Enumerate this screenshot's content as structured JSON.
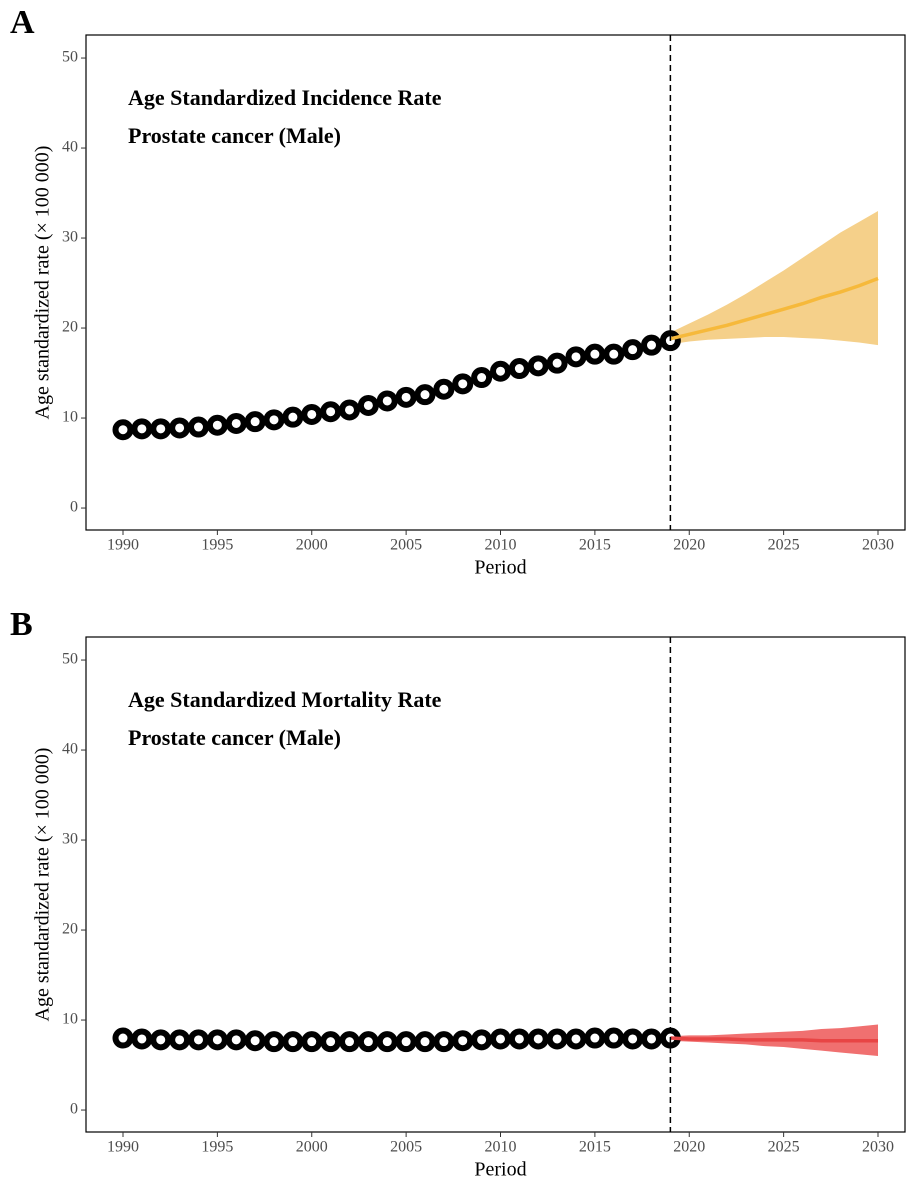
{
  "chart_data": [
    {
      "type": "line",
      "panel_label": "A",
      "title": "Age Standardized Incidence Rate",
      "subtitle": "Prostate cancer (Male)",
      "xlabel": "Period",
      "ylabel": "Age standardized rate (× 100 000)",
      "xlim": [
        1988.04,
        2031.43
      ],
      "xticks": [
        1990,
        1995,
        2000,
        2005,
        2010,
        2015,
        2020,
        2025,
        2030
      ],
      "ylim": [
        -2.44,
        52.56
      ],
      "yticks": [
        0,
        10,
        20,
        30,
        40,
        50
      ],
      "vline": 2019,
      "series": [
        {
          "color": "#000000",
          "x": [
            1990,
            1991,
            1992,
            1993,
            1994,
            1995,
            1996,
            1997,
            1998,
            1999,
            2000,
            2001,
            2002,
            2003,
            2004,
            2005,
            2006,
            2007,
            2008,
            2009,
            2010,
            2011,
            2012,
            2013,
            2014,
            2015,
            2016,
            2017,
            2018,
            2019
          ],
          "values": [
            8.7,
            8.8,
            8.8,
            8.9,
            9.0,
            9.2,
            9.4,
            9.6,
            9.8,
            10.1,
            10.4,
            10.7,
            10.9,
            11.4,
            11.9,
            12.3,
            12.6,
            13.2,
            13.8,
            14.5,
            15.2,
            15.5,
            15.8,
            16.1,
            16.8,
            17.1,
            17.1,
            17.6,
            18.1,
            18.6
          ]
        },
        {
          "color": "#f6b93b",
          "band_color": "#f5d08a",
          "x": [
            2019,
            2020,
            2021,
            2022,
            2023,
            2024,
            2025,
            2026,
            2027,
            2028,
            2029,
            2030
          ],
          "values": [
            18.8,
            19.3,
            19.8,
            20.3,
            20.9,
            21.5,
            22.1,
            22.7,
            23.4,
            24.0,
            24.7,
            25.5
          ],
          "lower": [
            18.2,
            18.5,
            18.7,
            18.8,
            18.9,
            19.0,
            19.0,
            18.9,
            18.8,
            18.6,
            18.4,
            18.1
          ],
          "upper": [
            19.5,
            20.5,
            21.5,
            22.6,
            23.8,
            25.1,
            26.4,
            27.8,
            29.2,
            30.6,
            31.8,
            33.0
          ]
        }
      ]
    },
    {
      "type": "line",
      "panel_label": "B",
      "title": "Age Standardized Mortality Rate",
      "subtitle": "Prostate cancer (Male)",
      "xlabel": "Period",
      "ylabel": "Age standardized rate (× 100 000)",
      "xlim": [
        1988.04,
        2031.43
      ],
      "xticks": [
        1990,
        1995,
        2000,
        2005,
        2010,
        2015,
        2020,
        2025,
        2030
      ],
      "ylim": [
        -2.44,
        52.56
      ],
      "yticks": [
        0,
        10,
        20,
        30,
        40,
        50
      ],
      "vline": 2019,
      "series": [
        {
          "color": "#000000",
          "x": [
            1990,
            1991,
            1992,
            1993,
            1994,
            1995,
            1996,
            1997,
            1998,
            1999,
            2000,
            2001,
            2002,
            2003,
            2004,
            2005,
            2006,
            2007,
            2008,
            2009,
            2010,
            2011,
            2012,
            2013,
            2014,
            2015,
            2016,
            2017,
            2018,
            2019
          ],
          "values": [
            8.0,
            7.9,
            7.8,
            7.8,
            7.8,
            7.8,
            7.8,
            7.7,
            7.6,
            7.6,
            7.6,
            7.6,
            7.6,
            7.6,
            7.6,
            7.6,
            7.6,
            7.6,
            7.7,
            7.8,
            7.9,
            7.9,
            7.9,
            7.9,
            7.9,
            8.0,
            8.0,
            7.9,
            7.9,
            8.0
          ]
        },
        {
          "color": "#e84545",
          "band_color": "#f07070",
          "x": [
            2019,
            2020,
            2021,
            2022,
            2023,
            2024,
            2025,
            2026,
            2027,
            2028,
            2029,
            2030
          ],
          "values": [
            8.0,
            7.9,
            7.9,
            7.9,
            7.8,
            7.8,
            7.8,
            7.8,
            7.7,
            7.7,
            7.7,
            7.7
          ],
          "lower": [
            7.7,
            7.6,
            7.5,
            7.4,
            7.3,
            7.1,
            7.0,
            6.8,
            6.6,
            6.4,
            6.2,
            6.0
          ],
          "upper": [
            8.2,
            8.3,
            8.3,
            8.4,
            8.5,
            8.6,
            8.7,
            8.8,
            9.0,
            9.1,
            9.3,
            9.5
          ]
        }
      ]
    }
  ]
}
